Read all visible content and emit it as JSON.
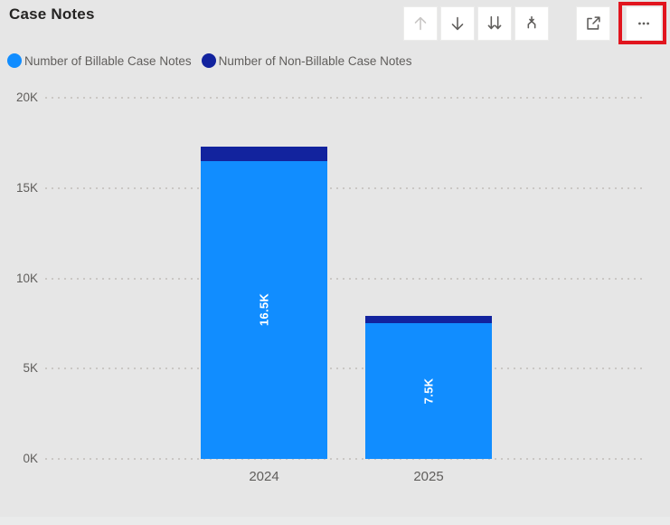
{
  "panel": {
    "title": "Case Notes",
    "background": "#E6E6E6"
  },
  "toolbar": {
    "icons": [
      "arrow-up",
      "arrow-down",
      "double-arrow-down",
      "expand-hierarchy",
      "focus-mode",
      "more-options"
    ],
    "disabled_icons": [
      "arrow-up"
    ],
    "annotation": {
      "shape": "rectangle",
      "color": "#E1151E",
      "around": "more-options"
    }
  },
  "chart_data": {
    "type": "bar",
    "stacked": true,
    "title": "Case Notes",
    "categories": [
      "2024",
      "2025"
    ],
    "series": [
      {
        "name": "Number of Billable Case Notes",
        "color": "#118DFF",
        "values": [
          16500,
          7500
        ],
        "labels": [
          "16.5K",
          "7.5K"
        ]
      },
      {
        "name": "Number of Non-Billable Case Notes",
        "color": "#12239E",
        "values": [
          800,
          400
        ],
        "labels": [
          "",
          ""
        ]
      }
    ],
    "ylim": [
      0,
      20000
    ],
    "yticks": [
      {
        "label": "20K",
        "value": 20000
      },
      {
        "label": "15K",
        "value": 15000
      },
      {
        "label": "10K",
        "value": 10000
      },
      {
        "label": "5K",
        "value": 5000
      },
      {
        "label": "0K",
        "value": 0
      }
    ],
    "grid": "horizontal-dotted",
    "legend_position": "top-left",
    "text_color": "#605E5C"
  }
}
